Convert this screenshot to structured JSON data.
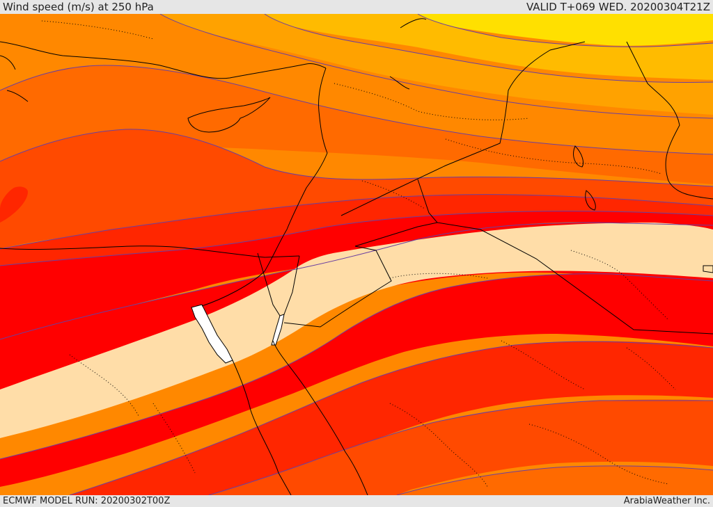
{
  "header": {
    "title": "Wind speed (m/s) at 250 hPa",
    "valid_time": "VALID T+069 WED. 20200304T21Z"
  },
  "footer": {
    "model_run": "ECMWF MODEL RUN: 20200302T00Z",
    "credit": "ArabiaWeather Inc."
  },
  "map": {
    "field": "wind speed",
    "level": "250 hPa",
    "band_colors": [
      "#ffe000",
      "#ffbb00",
      "#ffa200",
      "#ff8800",
      "#ff6a00",
      "#ff4a00",
      "#ff2600",
      "#ff0000",
      "#ffdda8",
      "#ffffff"
    ],
    "contour_color": "#6a3fa0",
    "border_color": "#000000"
  }
}
